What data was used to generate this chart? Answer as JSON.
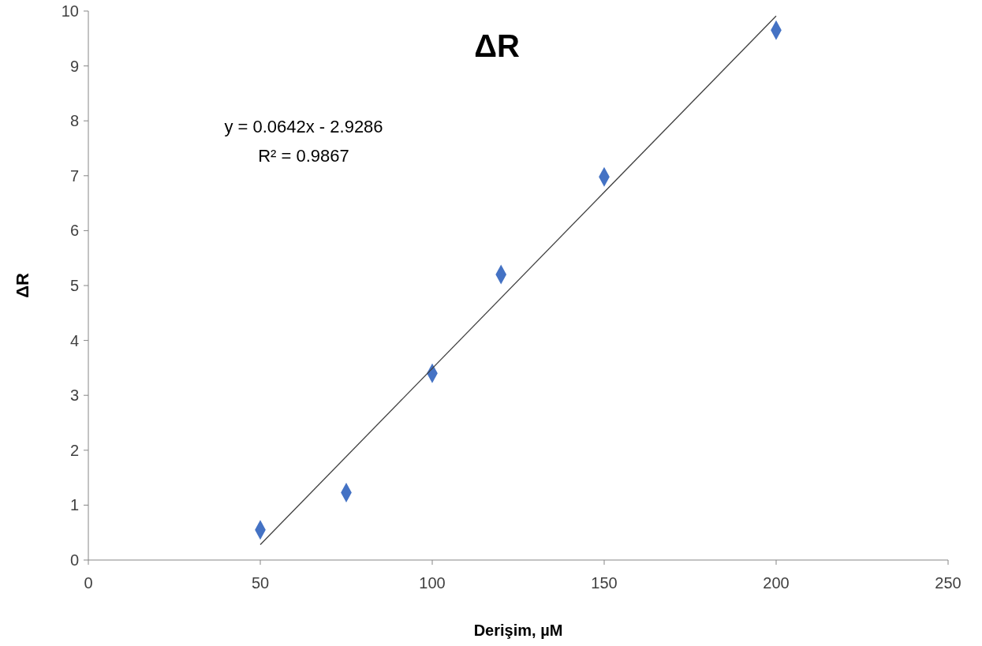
{
  "chart_data": {
    "type": "scatter",
    "title": "ΔR",
    "xlabel": "Derişim, µM",
    "ylabel": "ΔR",
    "x": [
      50,
      75,
      100,
      120,
      150,
      200
    ],
    "series": [
      {
        "color": "#4472c4",
        "marker": "diamond",
        "values": [
          0.55,
          1.23,
          3.4,
          5.2,
          6.98,
          9.65
        ]
      },
      {
        "type": "line",
        "color": "#404040",
        "x": [
          50,
          200
        ],
        "values": [
          0.28,
          9.91
        ],
        "marker": "none",
        "line_style": "solid"
      }
    ],
    "xlim": [
      0,
      250
    ],
    "xticks": [
      0,
      50,
      100,
      150,
      200,
      250
    ],
    "ylim": [
      0,
      10
    ],
    "yticks": [
      0,
      1,
      2,
      3,
      4,
      5,
      6,
      7,
      8,
      9,
      10
    ],
    "grid": false,
    "annotations": [
      "y = 0.0642x - 2.9286",
      "R² = 0.9867"
    ]
  }
}
